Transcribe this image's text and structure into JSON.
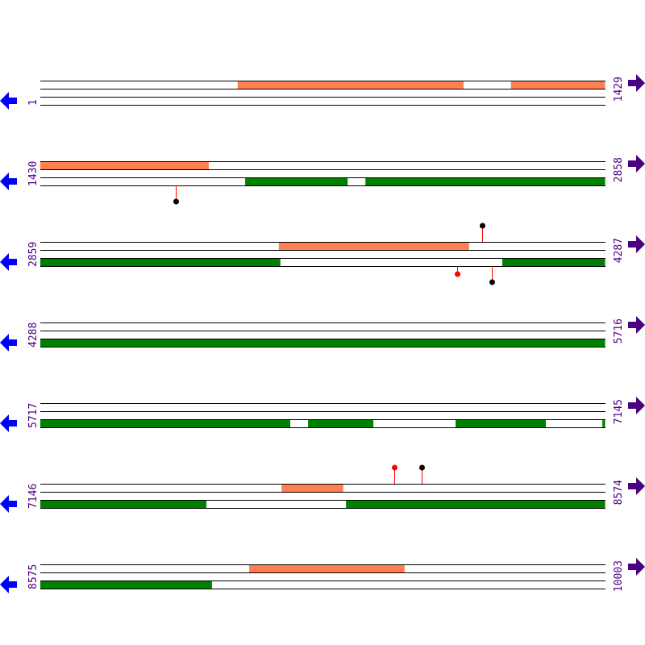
{
  "colors": {
    "top_feature": "#ff7f50",
    "bottom_feature": "#008000",
    "left_arrow": "#0000ff",
    "right_arrow": "#4b0082",
    "label": "#4b0082",
    "mark_red": "#ff0000",
    "mark_black": "#000000"
  },
  "rows": [
    {
      "start": "1",
      "end": "1429",
      "top": [
        [
          500,
          1071
        ],
        [
          1191,
          1429
        ]
      ],
      "bottom": [],
      "marks": []
    },
    {
      "start": "1430",
      "end": "2858",
      "top": [
        [
          1430,
          1856
        ]
      ],
      "bottom": [
        [
          1948,
          2207
        ],
        [
          2252,
          2858
        ]
      ],
      "marks": [
        {
          "pos": 1772,
          "strand": "bottom",
          "color": "black",
          "level": 2
        }
      ]
    },
    {
      "start": "2859",
      "end": "4287",
      "top": [
        [
          3462,
          3943
        ]
      ],
      "bottom": [
        [
          2859,
          3466
        ],
        [
          4027,
          4287
        ]
      ],
      "marks": [
        {
          "pos": 3976,
          "strand": "top",
          "color": "black",
          "level": 2
        },
        {
          "pos": 3913,
          "strand": "bottom",
          "color": "red",
          "level": 1
        },
        {
          "pos": 4000,
          "strand": "bottom",
          "color": "black",
          "level": 2
        }
      ]
    },
    {
      "start": "4288",
      "end": "5716",
      "top": [],
      "bottom": [
        [
          4288,
          5716
        ]
      ],
      "marks": []
    },
    {
      "start": "5717",
      "end": "7145",
      "top": [],
      "bottom": [
        [
          5717,
          6349
        ],
        [
          6394,
          6559
        ],
        [
          6767,
          6995
        ],
        [
          7138,
          7145
        ]
      ],
      "marks": []
    },
    {
      "start": "7146",
      "end": "8574",
      "top": [
        [
          7756,
          7912
        ]
      ],
      "bottom": [
        [
          7146,
          7566
        ],
        [
          7919,
          8574
        ]
      ],
      "marks": [
        {
          "pos": 8041,
          "strand": "top",
          "color": "red",
          "level": 2
        },
        {
          "pos": 8110,
          "strand": "top",
          "color": "black",
          "level": 2
        }
      ]
    },
    {
      "start": "8575",
      "end": "10003",
      "top": [
        [
          9103,
          9496
        ]
      ],
      "bottom": [
        [
          8575,
          9009
        ]
      ],
      "marks": []
    }
  ]
}
